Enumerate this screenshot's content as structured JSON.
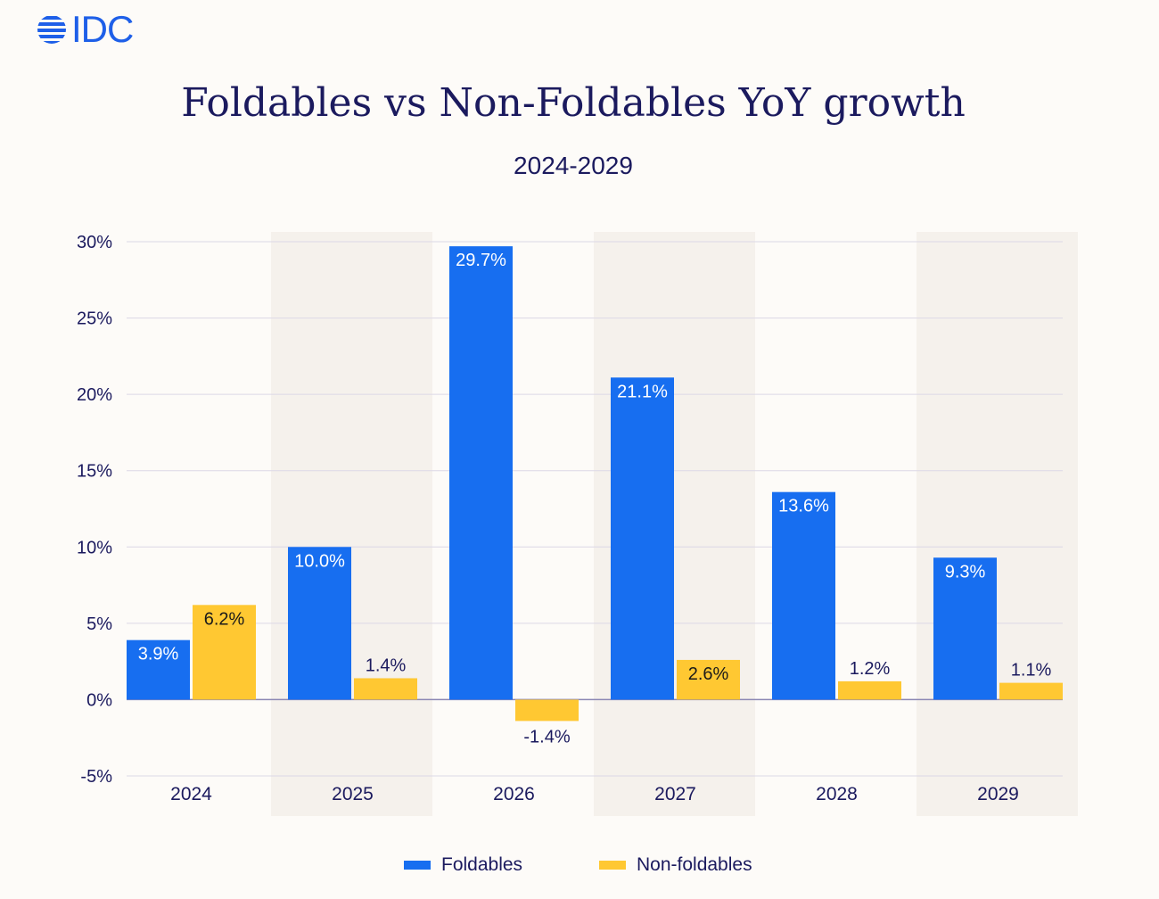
{
  "brand": {
    "logo_text": "IDC",
    "color": "#1e5fe8"
  },
  "header": {
    "title": "Foldables vs Non-Foldables YoY growth",
    "subtitle": "2024-2029"
  },
  "legend": {
    "items": [
      {
        "label": "Foldables",
        "color": "#176ef0"
      },
      {
        "label": "Non-foldables",
        "color": "#ffc832"
      }
    ]
  },
  "chart_data": {
    "type": "bar",
    "title": "Foldables vs Non-Foldables YoY growth",
    "subtitle": "2024-2029",
    "categories": [
      "2024",
      "2025",
      "2026",
      "2027",
      "2028",
      "2029"
    ],
    "series": [
      {
        "name": "Foldables",
        "color": "#176ef0",
        "values": [
          3.9,
          10.0,
          29.7,
          21.1,
          13.6,
          9.3
        ],
        "labels": [
          "3.9%",
          "10.0%",
          "29.7%",
          "21.1%",
          "13.6%",
          "9.3%"
        ]
      },
      {
        "name": "Non-foldables",
        "color": "#ffc832",
        "values": [
          6.2,
          1.4,
          -1.4,
          2.6,
          1.2,
          1.1
        ],
        "labels": [
          "6.2%",
          "1.4%",
          "-1.4%",
          "2.6%",
          "1.2%",
          "1.1%"
        ]
      }
    ],
    "ylim": [
      -5,
      30
    ],
    "yticks": [
      30,
      25,
      20,
      15,
      10,
      5,
      0,
      -5
    ],
    "ytick_labels": [
      "30%",
      "25%",
      "20%",
      "15%",
      "10%",
      "5%",
      "0%",
      "-5%"
    ],
    "xlabel": "",
    "ylabel": "",
    "grid": true,
    "shaded_categories": [
      "2025",
      "2027",
      "2029"
    ],
    "legend_position": "bottom-center"
  }
}
